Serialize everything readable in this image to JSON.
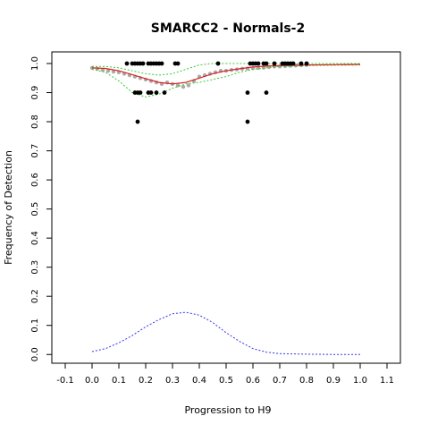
{
  "chart_data": {
    "type": "scatter",
    "title": "SMARCC2 - Normals-2",
    "xlabel": "Progression to H9",
    "ylabel": "Frequency of Detection",
    "xlim": [
      -0.15,
      1.15
    ],
    "ylim": [
      -0.03,
      1.04
    ],
    "xticks": [
      -0.1,
      0.0,
      0.1,
      0.2,
      0.3,
      0.4,
      0.5,
      0.6,
      0.7,
      0.8,
      0.9,
      1.0,
      1.1
    ],
    "xtick_labels": [
      "-0.1",
      "0.0",
      "0.1",
      "0.2",
      "0.3",
      "0.4",
      "0.5",
      "0.6",
      "0.7",
      "0.8",
      "0.9",
      "1.0",
      "1.1"
    ],
    "yticks": [
      0.0,
      0.1,
      0.2,
      0.3,
      0.4,
      0.5,
      0.6,
      0.7,
      0.8,
      0.9,
      1.0
    ],
    "ytick_labels": [
      "0.0",
      "0.1",
      "0.2",
      "0.3",
      "0.4",
      "0.5",
      "0.6",
      "0.7",
      "0.8",
      "0.9",
      "1.0"
    ],
    "grid": false,
    "colors": {
      "points": "#000000",
      "running_mean": "#aaaaaa",
      "fit": "#dd2222",
      "band": "#33cc33",
      "density": "#3333ee"
    },
    "series": [
      {
        "style": "black-points",
        "points": [
          [
            0.13,
            1.0
          ],
          [
            0.15,
            1.0
          ],
          [
            0.16,
            1.0
          ],
          [
            0.17,
            1.0
          ],
          [
            0.18,
            1.0
          ],
          [
            0.19,
            1.0
          ],
          [
            0.21,
            1.0
          ],
          [
            0.22,
            1.0
          ],
          [
            0.23,
            1.0
          ],
          [
            0.24,
            1.0
          ],
          [
            0.25,
            1.0
          ],
          [
            0.26,
            1.0
          ],
          [
            0.31,
            1.0
          ],
          [
            0.32,
            1.0
          ],
          [
            0.47,
            1.0
          ],
          [
            0.59,
            1.0
          ],
          [
            0.6,
            1.0
          ],
          [
            0.61,
            1.0
          ],
          [
            0.62,
            1.0
          ],
          [
            0.64,
            1.0
          ],
          [
            0.65,
            1.0
          ],
          [
            0.68,
            1.0
          ],
          [
            0.71,
            1.0
          ],
          [
            0.72,
            1.0
          ],
          [
            0.73,
            1.0
          ],
          [
            0.74,
            1.0
          ],
          [
            0.75,
            1.0
          ],
          [
            0.78,
            1.0
          ],
          [
            0.8,
            1.0
          ],
          [
            0.16,
            0.9
          ],
          [
            0.17,
            0.9
          ],
          [
            0.18,
            0.9
          ],
          [
            0.21,
            0.9
          ],
          [
            0.22,
            0.9
          ],
          [
            0.24,
            0.9
          ],
          [
            0.27,
            0.9
          ],
          [
            0.58,
            0.9
          ],
          [
            0.65,
            0.9
          ],
          [
            0.17,
            0.8
          ],
          [
            0.58,
            0.8
          ]
        ]
      },
      {
        "style": "grey-running-mean",
        "points": [
          [
            0.0,
            0.985
          ],
          [
            0.02,
            0.982
          ],
          [
            0.04,
            0.978
          ],
          [
            0.06,
            0.975
          ],
          [
            0.08,
            0.972
          ],
          [
            0.1,
            0.97
          ],
          [
            0.12,
            0.965
          ],
          [
            0.14,
            0.96
          ],
          [
            0.16,
            0.955
          ],
          [
            0.18,
            0.95
          ],
          [
            0.2,
            0.945
          ],
          [
            0.22,
            0.94
          ],
          [
            0.24,
            0.935
          ],
          [
            0.26,
            0.93
          ],
          [
            0.28,
            0.935
          ],
          [
            0.3,
            0.93
          ],
          [
            0.32,
            0.925
          ],
          [
            0.34,
            0.92
          ],
          [
            0.36,
            0.925
          ],
          [
            0.38,
            0.94
          ],
          [
            0.4,
            0.955
          ],
          [
            0.42,
            0.96
          ],
          [
            0.44,
            0.965
          ],
          [
            0.46,
            0.97
          ],
          [
            0.48,
            0.975
          ],
          [
            0.5,
            0.975
          ],
          [
            0.52,
            0.978
          ],
          [
            0.54,
            0.98
          ],
          [
            0.56,
            0.982
          ],
          [
            0.58,
            0.983
          ],
          [
            0.6,
            0.984
          ],
          [
            0.62,
            0.985
          ],
          [
            0.64,
            0.986
          ],
          [
            0.66,
            0.988
          ],
          [
            0.68,
            0.99
          ],
          [
            0.7,
            0.99
          ],
          [
            0.72,
            0.991
          ],
          [
            0.74,
            0.992
          ],
          [
            0.76,
            0.993
          ],
          [
            0.78,
            0.994
          ],
          [
            0.8,
            0.995
          ]
        ]
      },
      {
        "style": "red-fit",
        "points": [
          [
            0.0,
            0.985
          ],
          [
            0.05,
            0.983
          ],
          [
            0.1,
            0.975
          ],
          [
            0.15,
            0.962
          ],
          [
            0.2,
            0.948
          ],
          [
            0.25,
            0.935
          ],
          [
            0.3,
            0.93
          ],
          [
            0.35,
            0.935
          ],
          [
            0.4,
            0.95
          ],
          [
            0.45,
            0.965
          ],
          [
            0.5,
            0.975
          ],
          [
            0.55,
            0.982
          ],
          [
            0.6,
            0.988
          ],
          [
            0.65,
            0.991
          ],
          [
            0.7,
            0.993
          ],
          [
            0.8,
            0.995
          ],
          [
            0.9,
            0.996
          ],
          [
            1.0,
            0.997
          ]
        ]
      },
      {
        "style": "green-upper",
        "points": [
          [
            0.0,
            0.99
          ],
          [
            0.05,
            0.99
          ],
          [
            0.1,
            0.985
          ],
          [
            0.15,
            0.975
          ],
          [
            0.2,
            0.965
          ],
          [
            0.25,
            0.96
          ],
          [
            0.3,
            0.965
          ],
          [
            0.35,
            0.98
          ],
          [
            0.4,
            0.995
          ],
          [
            0.45,
            1.0
          ],
          [
            0.5,
            1.0
          ],
          [
            0.6,
            1.0
          ],
          [
            0.7,
            1.0
          ],
          [
            0.8,
            1.0
          ],
          [
            0.9,
            1.0
          ],
          [
            1.0,
            1.0
          ]
        ]
      },
      {
        "style": "green-lower",
        "points": [
          [
            0.0,
            0.98
          ],
          [
            0.05,
            0.97
          ],
          [
            0.1,
            0.94
          ],
          [
            0.15,
            0.9
          ],
          [
            0.2,
            0.885
          ],
          [
            0.25,
            0.895
          ],
          [
            0.3,
            0.915
          ],
          [
            0.35,
            0.93
          ],
          [
            0.4,
            0.935
          ],
          [
            0.45,
            0.945
          ],
          [
            0.5,
            0.955
          ],
          [
            0.55,
            0.97
          ],
          [
            0.6,
            0.98
          ],
          [
            0.65,
            0.985
          ],
          [
            0.7,
            0.99
          ],
          [
            0.8,
            0.993
          ],
          [
            0.9,
            0.994
          ],
          [
            1.0,
            0.995
          ]
        ]
      },
      {
        "style": "blue-density",
        "points": [
          [
            0.0,
            0.01
          ],
          [
            0.05,
            0.02
          ],
          [
            0.1,
            0.04
          ],
          [
            0.15,
            0.065
          ],
          [
            0.2,
            0.095
          ],
          [
            0.25,
            0.12
          ],
          [
            0.3,
            0.14
          ],
          [
            0.35,
            0.145
          ],
          [
            0.4,
            0.135
          ],
          [
            0.45,
            0.11
          ],
          [
            0.5,
            0.075
          ],
          [
            0.55,
            0.045
          ],
          [
            0.6,
            0.02
          ],
          [
            0.65,
            0.008
          ],
          [
            0.7,
            0.003
          ],
          [
            0.8,
            0.001
          ],
          [
            0.9,
            0.0
          ],
          [
            1.0,
            0.0
          ]
        ]
      }
    ]
  }
}
